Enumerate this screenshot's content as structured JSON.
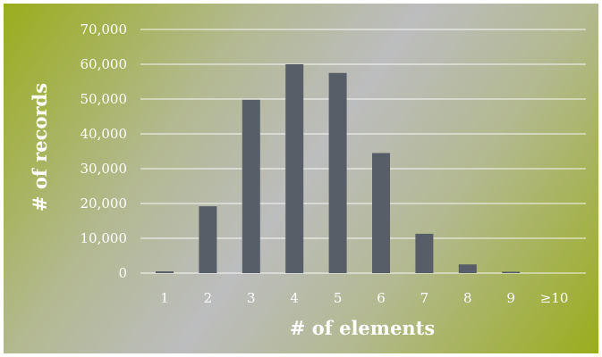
{
  "chart_data": {
    "type": "bar",
    "title": "",
    "xlabel": "# of elements",
    "ylabel": "# of records",
    "categories": [
      "1",
      "2",
      "3",
      "4",
      "5",
      "6",
      "7",
      "8",
      "9",
      "≥10"
    ],
    "values": [
      500,
      19200,
      49800,
      60000,
      57500,
      34500,
      11300,
      2500,
      400,
      0
    ],
    "ylim": [
      0,
      70000
    ],
    "yticks": [
      "0",
      "10,000",
      "20,000",
      "30,000",
      "40,000",
      "50,000",
      "60,000",
      "70,000"
    ],
    "ytick_values": [
      0,
      10000,
      20000,
      30000,
      40000,
      50000,
      60000,
      70000
    ],
    "grid": true,
    "legend": "none",
    "colors": {
      "bar": "#585e67",
      "text": "#ffffff",
      "grid": "#ffffff"
    }
  }
}
